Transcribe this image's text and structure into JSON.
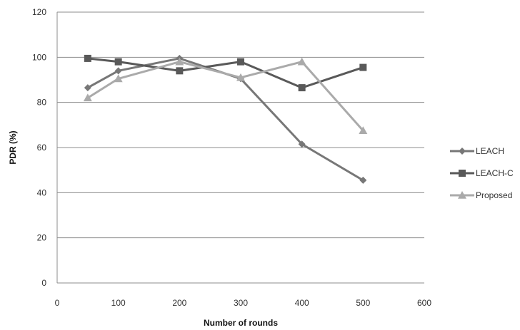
{
  "chart_data": {
    "type": "line",
    "xlabel": "Number of rounds",
    "ylabel": "PDR (%)",
    "xlim": [
      0,
      600
    ],
    "ylim": [
      0,
      120
    ],
    "x_ticks": [
      0,
      100,
      200,
      300,
      400,
      500,
      600
    ],
    "y_ticks": [
      0,
      20,
      40,
      60,
      80,
      100,
      120
    ],
    "grid": "horizontal",
    "legend_position": "right",
    "series": [
      {
        "name": "LEACH",
        "marker": "diamond",
        "color": "#777777",
        "x": [
          50,
          100,
          200,
          300,
          400,
          500
        ],
        "y": [
          86.5,
          94,
          99.5,
          90.5,
          61.5,
          45.5
        ]
      },
      {
        "name": "LEACH-C",
        "marker": "square",
        "color": "#595959",
        "x": [
          50,
          100,
          200,
          300,
          400,
          500
        ],
        "y": [
          99.5,
          98,
          94,
          98,
          86.5,
          95.5
        ]
      },
      {
        "name": "Proposed",
        "marker": "triangle",
        "color": "#aaaaaa",
        "x": [
          50,
          100,
          200,
          300,
          400,
          500
        ],
        "y": [
          82,
          90.5,
          98,
          91,
          98,
          67.5
        ]
      }
    ]
  }
}
